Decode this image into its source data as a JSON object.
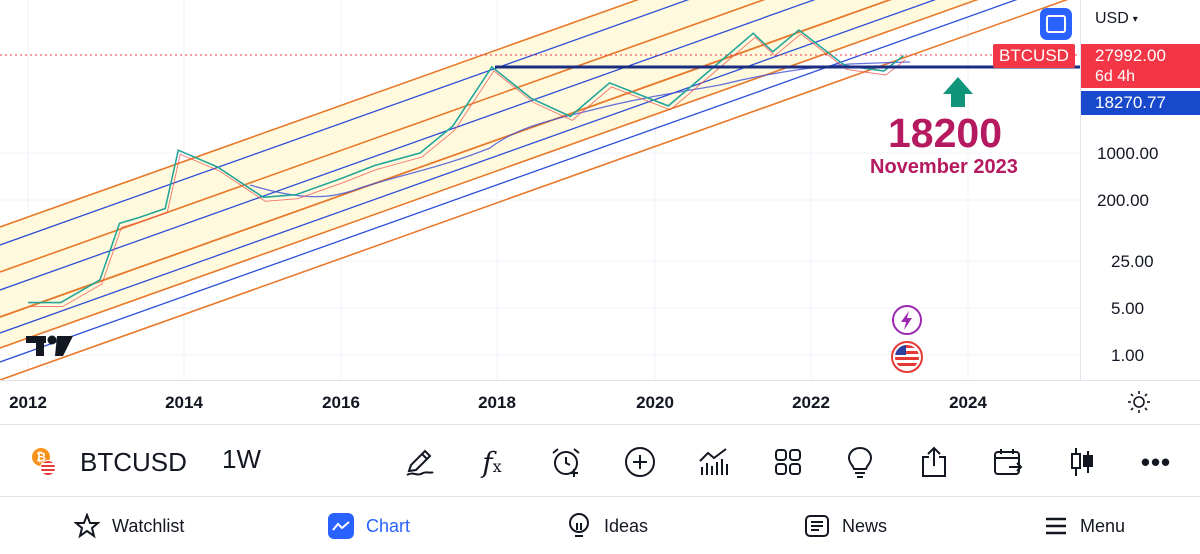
{
  "symbol": "BTCUSD",
  "interval": "1W",
  "currency": "USD",
  "annotation": {
    "value": "18200",
    "date": "November 2023"
  },
  "price_axis": {
    "last_price": "27992.00",
    "countdown": "6d 4h",
    "line_price": "18270.77",
    "ticks": [
      "1000.00",
      "200.00",
      "25.00",
      "5.00",
      "1.00"
    ]
  },
  "time_axis": {
    "ticks": [
      "2012",
      "2014",
      "2016",
      "2018",
      "2020",
      "2022",
      "2024"
    ]
  },
  "nav": {
    "watchlist": "Watchlist",
    "chart": "Chart",
    "ideas": "Ideas",
    "news": "News",
    "menu": "Menu"
  },
  "colors": {
    "accent": "#2962ff",
    "annotation": "#b5195f",
    "price_label": "#f23645",
    "line_label": "#1848cc",
    "channel_orange": "#e8792b",
    "channel_blue": "#2d4fd6",
    "channel_fill": "#fff9d9",
    "arrow": "#11957a"
  },
  "chart_data": {
    "type": "line",
    "yscale": "log",
    "series": [
      {
        "values": [
          {
            "x": "2012-01",
            "y": 6
          },
          {
            "x": "2012-06",
            "y": 6
          },
          {
            "x": "2012-12",
            "y": 13
          },
          {
            "x": "2013-03",
            "y": 90
          },
          {
            "x": "2013-06",
            "y": 110
          },
          {
            "x": "2013-10",
            "y": 150
          },
          {
            "x": "2013-12",
            "y": 1100
          },
          {
            "x": "2014-06",
            "y": 620
          },
          {
            "x": "2015-01",
            "y": 220
          },
          {
            "x": "2015-06",
            "y": 240
          },
          {
            "x": "2016-01",
            "y": 420
          },
          {
            "x": "2016-06",
            "y": 650
          },
          {
            "x": "2017-01",
            "y": 1000
          },
          {
            "x": "2017-06",
            "y": 2500
          },
          {
            "x": "2017-12",
            "y": 19000
          },
          {
            "x": "2018-06",
            "y": 6500
          },
          {
            "x": "2018-12",
            "y": 3500
          },
          {
            "x": "2019-06",
            "y": 11000
          },
          {
            "x": "2020-03",
            "y": 5000
          },
          {
            "x": "2020-12",
            "y": 28000
          },
          {
            "x": "2021-04",
            "y": 60000
          },
          {
            "x": "2021-07",
            "y": 32000
          },
          {
            "x": "2021-11",
            "y": 67000
          },
          {
            "x": "2022-06",
            "y": 20000
          },
          {
            "x": "2022-12",
            "y": 16500
          },
          {
            "x": "2023-03",
            "y": 27992
          }
        ]
      }
    ],
    "hlines": [
      18270.77
    ],
    "annotations": [
      "18200",
      "November 2023"
    ],
    "xlabel": "",
    "ylabel": "",
    "legend": "none",
    "grid": true
  }
}
